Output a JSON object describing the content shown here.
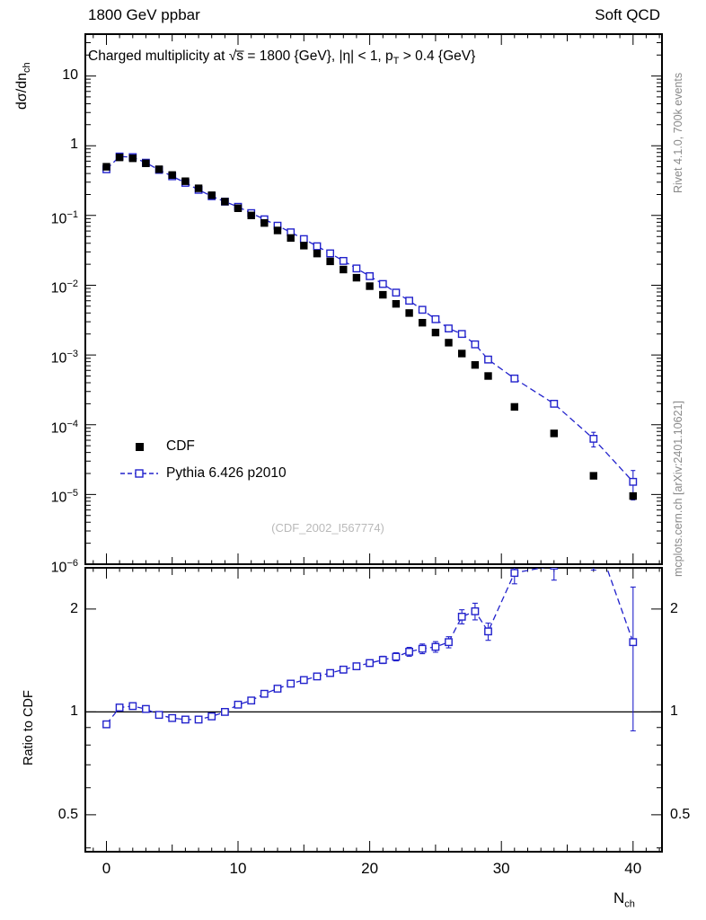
{
  "header": {
    "left": "1800 GeV ppbar",
    "right": "Soft QCD"
  },
  "main_panel": {
    "title_pre": "Charged multiplicity at √s̅ = 1800 {GeV}, |η| < 1, p",
    "title_sub": "T",
    "title_post": " > 0.4 {GeV}",
    "ylabel_pre": "dσ/dn",
    "ylabel_sub": "ch",
    "watermark": "(CDF_2002_I567774)"
  },
  "ratio_panel": {
    "ylabel": "Ratio to CDF"
  },
  "xaxis": {
    "label_pre": "N",
    "label_sub": "ch"
  },
  "side_labels": {
    "top": "Rivet 4.1.0,  700k events",
    "bottom": "mcplots.cern.ch [arXiv:2401.10621]"
  },
  "legend": {
    "items": [
      {
        "label": "CDF"
      },
      {
        "label": "Pythia 6.426 p2010"
      }
    ]
  },
  "colors": {
    "data": "#000000",
    "mc": "#2222cc",
    "watermark": "#b9b9b9",
    "side_text": "#8a8a8a",
    "frame": "#000000"
  },
  "axes": {
    "y_ticks": [
      {
        "v": 10,
        "t": "10"
      },
      {
        "v": 1,
        "t": "1"
      },
      {
        "v": 0.1,
        "t": "10",
        "e": "−1"
      },
      {
        "v": 0.01,
        "t": "10",
        "e": "−2"
      },
      {
        "v": 0.001,
        "t": "10",
        "e": "−3"
      },
      {
        "v": 0.0001,
        "t": "10",
        "e": "−4"
      },
      {
        "v": 1e-05,
        "t": "10",
        "e": "−5"
      },
      {
        "v": 1e-06,
        "t": "10",
        "e": "−6"
      }
    ],
    "x_ticks": [
      {
        "v": 0,
        "t": "0"
      },
      {
        "v": 10,
        "t": "10"
      },
      {
        "v": 20,
        "t": "20"
      },
      {
        "v": 30,
        "t": "30"
      },
      {
        "v": 40,
        "t": "40"
      }
    ],
    "ratio_ticks": [
      {
        "v": 0.5,
        "t": "0.5"
      },
      {
        "v": 1,
        "t": "1"
      },
      {
        "v": 2,
        "t": "2"
      }
    ]
  },
  "chart_data": {
    "type": "scatter",
    "title": "Charged multiplicity at sqrt(s) = 1800 GeV, |eta| < 1, pT > 0.4 GeV",
    "xlabel": "N_ch",
    "ylabel": "dsigma/dn_ch",
    "ratio_ylabel": "Ratio to CDF",
    "xlim": [
      -1.6,
      42.2
    ],
    "ylog": true,
    "ylim": [
      1e-06,
      39.8
    ],
    "ratio_log": true,
    "ratio_lim": [
      0.39,
      2.64
    ],
    "legend_position": "inside-left-bottom",
    "grid": false,
    "x": [
      0,
      1,
      2,
      3,
      4,
      5,
      6,
      7,
      8,
      9,
      10,
      11,
      12,
      13,
      14,
      15,
      16,
      17,
      18,
      19,
      20,
      21,
      22,
      23,
      24,
      25,
      26,
      27,
      28,
      29,
      31,
      34,
      37,
      40
    ],
    "series": [
      {
        "name": "CDF",
        "style": "filled-square",
        "color": "#000000",
        "values": [
          0.5,
          0.68,
          0.66,
          0.56,
          0.46,
          0.38,
          0.31,
          0.245,
          0.195,
          0.158,
          0.127,
          0.1,
          0.078,
          0.061,
          0.0475,
          0.037,
          0.0285,
          0.022,
          0.0168,
          0.0128,
          0.0097,
          0.0073,
          0.0054,
          0.004,
          0.0029,
          0.0021,
          0.0015,
          0.00105,
          0.00072,
          0.0005,
          0.00018,
          7.5e-05,
          1.85e-05,
          9.5e-06
        ]
      },
      {
        "name": "Pythia 6.426 p2010",
        "style": "open-square-dashed",
        "color": "#2222cc",
        "values": [
          0.46,
          0.7,
          0.686,
          0.571,
          0.451,
          0.365,
          0.294,
          0.233,
          0.189,
          0.158,
          0.133,
          0.108,
          0.0881,
          0.0714,
          0.0574,
          0.0459,
          0.0362,
          0.0286,
          0.0223,
          0.0174,
          0.0135,
          0.0104,
          0.00783,
          0.006,
          0.00444,
          0.00326,
          0.0024,
          0.002,
          0.00142,
          0.00086,
          0.00046,
          0.0002,
          6.29e-05,
          1.52e-05
        ],
        "ratio_to_cdf": [
          0.92,
          1.03,
          1.04,
          1.02,
          0.98,
          0.96,
          0.95,
          0.95,
          0.97,
          1.0,
          1.05,
          1.08,
          1.13,
          1.17,
          1.21,
          1.24,
          1.27,
          1.3,
          1.33,
          1.36,
          1.39,
          1.42,
          1.45,
          1.5,
          1.53,
          1.55,
          1.6,
          1.9,
          1.97,
          1.72,
          2.55,
          2.68,
          3.4,
          1.6
        ],
        "ratio_err": [
          0.02,
          0.01,
          0.01,
          0.01,
          0.01,
          0.01,
          0.01,
          0.01,
          0.01,
          0.01,
          0.015,
          0.015,
          0.015,
          0.02,
          0.02,
          0.02,
          0.025,
          0.025,
          0.03,
          0.03,
          0.03,
          0.035,
          0.04,
          0.045,
          0.05,
          0.055,
          0.06,
          0.09,
          0.11,
          0.1,
          0.18,
          0.25,
          0.8,
          0.72
        ]
      }
    ]
  }
}
